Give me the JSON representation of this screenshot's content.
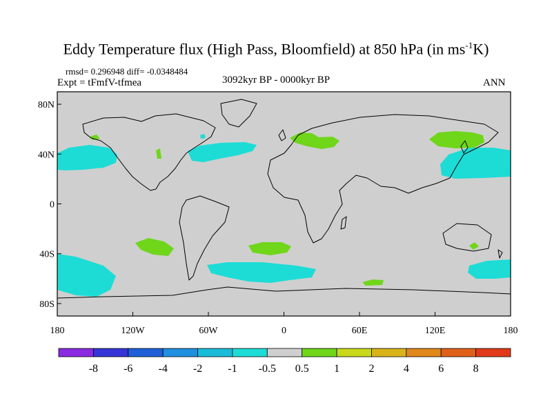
{
  "title": {
    "main": "Eddy Temperature flux (High Pass, Bloomfield) at 850 hPa (in ms",
    "sup": "-1",
    "tail": "K)"
  },
  "stats": "rmsd= 0.296948 diff= -0.0348484",
  "experiment": "Expt = tFmfV-tfmea",
  "period": "3092kyr BP - 0000kyr BP",
  "season": "ANN",
  "y_axis": {
    "ticks": [
      {
        "label": "80N",
        "lat": 80
      },
      {
        "label": "40N",
        "lat": 40
      },
      {
        "label": "0",
        "lat": 0
      },
      {
        "label": "40S",
        "lat": -40
      },
      {
        "label": "80S",
        "lat": -80
      }
    ]
  },
  "x_axis": {
    "ticks": [
      {
        "label": "180",
        "lon": -180
      },
      {
        "label": "120W",
        "lon": -120
      },
      {
        "label": "60W",
        "lon": -60
      },
      {
        "label": "0",
        "lon": 0
      },
      {
        "label": "60E",
        "lon": 60
      },
      {
        "label": "120E",
        "lon": 120
      },
      {
        "label": "180",
        "lon": 180
      }
    ]
  },
  "colorbar": {
    "colors": [
      "#8a2be2",
      "#3535d8",
      "#1e5fd8",
      "#1f8fe0",
      "#19bcd8",
      "#1ddcd6",
      "#cfcfcf",
      "#6fd61a",
      "#c8d81a",
      "#d8b41a",
      "#e0881a",
      "#e0601a",
      "#e03a1a"
    ],
    "labels": [
      "-8",
      "-6",
      "-4",
      "-2",
      "-1",
      "-0.5",
      "0.5",
      "1",
      "2",
      "4",
      "6",
      "8"
    ]
  },
  "map": {
    "background": "#cfcfcf",
    "lon_range": [
      -180,
      180
    ],
    "lat_range": [
      -90,
      90
    ]
  }
}
